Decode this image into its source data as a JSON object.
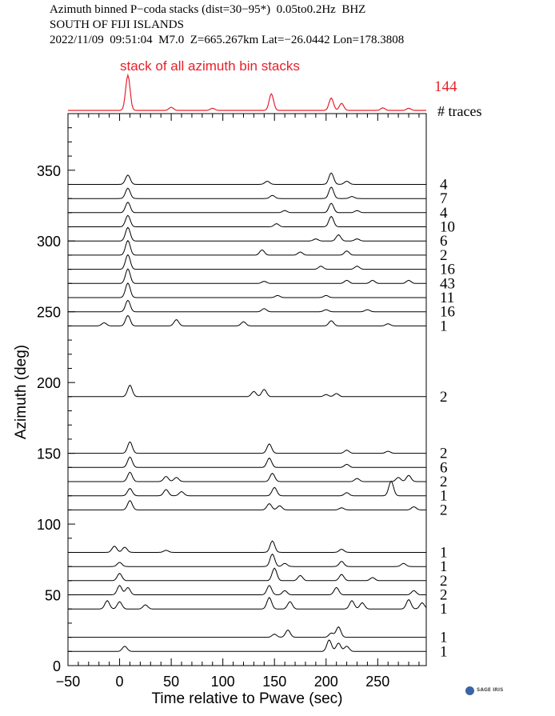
{
  "header": {
    "line1": "Azimuth binned P−coda stacks (dist=30−95*)  0.05to0.2Hz  BHZ",
    "line2": "SOUTH OF FIJI ISLANDS",
    "line3": "2022/11/09  09:51:04  M7.0  Z=665.267km Lat=−26.0442 Lon=178.3808"
  },
  "logo_text": "SAGE IRIS",
  "chart_data": {
    "type": "line",
    "title": "stack of all azimuth bin stacks",
    "total_traces": "144",
    "traces_label": "# traces",
    "xlabel": "Time relative to Pwave (sec)",
    "ylabel": "Azimuth (deg)",
    "xlim": [
      -50,
      297
    ],
    "ylim": [
      0,
      390
    ],
    "xticks": [
      -50,
      0,
      50,
      100,
      150,
      200,
      250
    ],
    "xtick_labels": [
      "−50",
      "0",
      "50",
      "100",
      "150",
      "200",
      "250"
    ],
    "yticks": [
      0,
      50,
      100,
      150,
      200,
      250,
      300,
      350
    ],
    "grid": false,
    "colors": {
      "stack": "#e8202a",
      "traces": "#000000"
    },
    "stack": {
      "peaks": [
        [
          8,
          1.0
        ],
        [
          147,
          0.47
        ],
        [
          205,
          0.35
        ],
        [
          215,
          0.2
        ],
        [
          50,
          0.09
        ],
        [
          90,
          0.06
        ],
        [
          255,
          0.07
        ],
        [
          280,
          0.06
        ]
      ]
    },
    "series": [
      {
        "azimuth": 340,
        "count": "4",
        "peaks": [
          [
            8,
            9
          ],
          [
            143,
            3
          ],
          [
            205,
            11
          ],
          [
            220,
            3
          ]
        ]
      },
      {
        "azimuth": 330,
        "count": "7",
        "peaks": [
          [
            8,
            10
          ],
          [
            148,
            3
          ],
          [
            205,
            11
          ],
          [
            225,
            2
          ]
        ]
      },
      {
        "azimuth": 320,
        "count": "4",
        "peaks": [
          [
            8,
            10
          ],
          [
            160,
            2
          ],
          [
            205,
            9
          ],
          [
            230,
            2
          ]
        ]
      },
      {
        "azimuth": 310,
        "count": "10",
        "peaks": [
          [
            8,
            11
          ],
          [
            152,
            3
          ],
          [
            205,
            10
          ]
        ]
      },
      {
        "azimuth": 300,
        "count": "6",
        "peaks": [
          [
            8,
            13
          ],
          [
            212,
            6
          ],
          [
            190,
            2
          ],
          [
            230,
            2
          ]
        ]
      },
      {
        "azimuth": 290,
        "count": "2",
        "peaks": [
          [
            8,
            14
          ],
          [
            138,
            5
          ],
          [
            175,
            3
          ],
          [
            220,
            4
          ]
        ]
      },
      {
        "azimuth": 280,
        "count": "16",
        "peaks": [
          [
            8,
            14
          ],
          [
            195,
            3
          ],
          [
            230,
            3
          ]
        ]
      },
      {
        "azimuth": 270,
        "count": "43",
        "peaks": [
          [
            8,
            14
          ],
          [
            140,
            2
          ],
          [
            220,
            3
          ],
          [
            245,
            3
          ],
          [
            280,
            3
          ]
        ]
      },
      {
        "azimuth": 260,
        "count": "11",
        "peaks": [
          [
            8,
            14
          ],
          [
            153,
            2
          ],
          [
            200,
            2
          ]
        ]
      },
      {
        "azimuth": 250,
        "count": "16",
        "peaks": [
          [
            8,
            11
          ],
          [
            140,
            3
          ],
          [
            200,
            2
          ],
          [
            240,
            2
          ]
        ]
      },
      {
        "azimuth": 240,
        "count": "1",
        "peaks": [
          [
            8,
            10
          ],
          [
            -15,
            3
          ],
          [
            55,
            6
          ],
          [
            120,
            4
          ],
          [
            205,
            5
          ],
          [
            260,
            2
          ]
        ]
      },
      {
        "azimuth": 190,
        "count": "2",
        "peaks": [
          [
            10,
            11
          ],
          [
            130,
            5
          ],
          [
            140,
            7
          ],
          [
            210,
            3
          ],
          [
            200,
            2
          ]
        ]
      },
      {
        "azimuth": 150,
        "count": "2",
        "peaks": [
          [
            10,
            11
          ],
          [
            145,
            9
          ],
          [
            220,
            3
          ],
          [
            260,
            2
          ]
        ]
      },
      {
        "azimuth": 140,
        "count": "6",
        "peaks": [
          [
            10,
            10
          ],
          [
            145,
            9
          ],
          [
            220,
            3
          ]
        ]
      },
      {
        "azimuth": 130,
        "count": "2",
        "peaks": [
          [
            10,
            9
          ],
          [
            45,
            5
          ],
          [
            55,
            4
          ],
          [
            148,
            8
          ],
          [
            230,
            3
          ],
          [
            270,
            4
          ],
          [
            280,
            6
          ]
        ]
      },
      {
        "azimuth": 120,
        "count": "1",
        "peaks": [
          [
            10,
            7
          ],
          [
            45,
            6
          ],
          [
            60,
            4
          ],
          [
            150,
            8
          ],
          [
            220,
            3
          ],
          [
            263,
            14
          ]
        ]
      },
      {
        "azimuth": 110,
        "count": "2",
        "peaks": [
          [
            10,
            9
          ],
          [
            145,
            6
          ],
          [
            155,
            4
          ],
          [
            215,
            2
          ],
          [
            285,
            3
          ]
        ]
      },
      {
        "azimuth": 80,
        "count": "1",
        "peaks": [
          [
            -5,
            6
          ],
          [
            5,
            5
          ],
          [
            45,
            2
          ],
          [
            148,
            11
          ],
          [
            215,
            3
          ]
        ]
      },
      {
        "azimuth": 70,
        "count": "1",
        "peaks": [
          [
            0,
            4
          ],
          [
            148,
            12
          ],
          [
            160,
            3
          ],
          [
            215,
            5
          ],
          [
            275,
            3
          ]
        ]
      },
      {
        "azimuth": 60,
        "count": "2",
        "peaks": [
          [
            0,
            7
          ],
          [
            150,
            12
          ],
          [
            175,
            5
          ],
          [
            215,
            6
          ],
          [
            245,
            3
          ]
        ]
      },
      {
        "azimuth": 50,
        "count": "2",
        "peaks": [
          [
            0,
            9
          ],
          [
            8,
            7
          ],
          [
            145,
            9
          ],
          [
            160,
            4
          ],
          [
            210,
            7
          ],
          [
            285,
            4
          ]
        ]
      },
      {
        "azimuth": 40,
        "count": "1",
        "peaks": [
          [
            -12,
            8
          ],
          [
            0,
            7
          ],
          [
            25,
            4
          ],
          [
            145,
            11
          ],
          [
            165,
            7
          ],
          [
            225,
            8
          ],
          [
            235,
            6
          ],
          [
            280,
            9
          ],
          [
            293,
            6
          ]
        ]
      },
      {
        "azimuth": 20,
        "count": "1",
        "peaks": [
          [
            150,
            3
          ],
          [
            163,
            7
          ],
          [
            205,
            4
          ],
          [
            212,
            10
          ]
        ]
      },
      {
        "azimuth": 10,
        "count": "1",
        "peaks": [
          [
            5,
            5
          ],
          [
            203,
            11
          ],
          [
            212,
            8
          ],
          [
            220,
            5
          ]
        ]
      }
    ]
  }
}
